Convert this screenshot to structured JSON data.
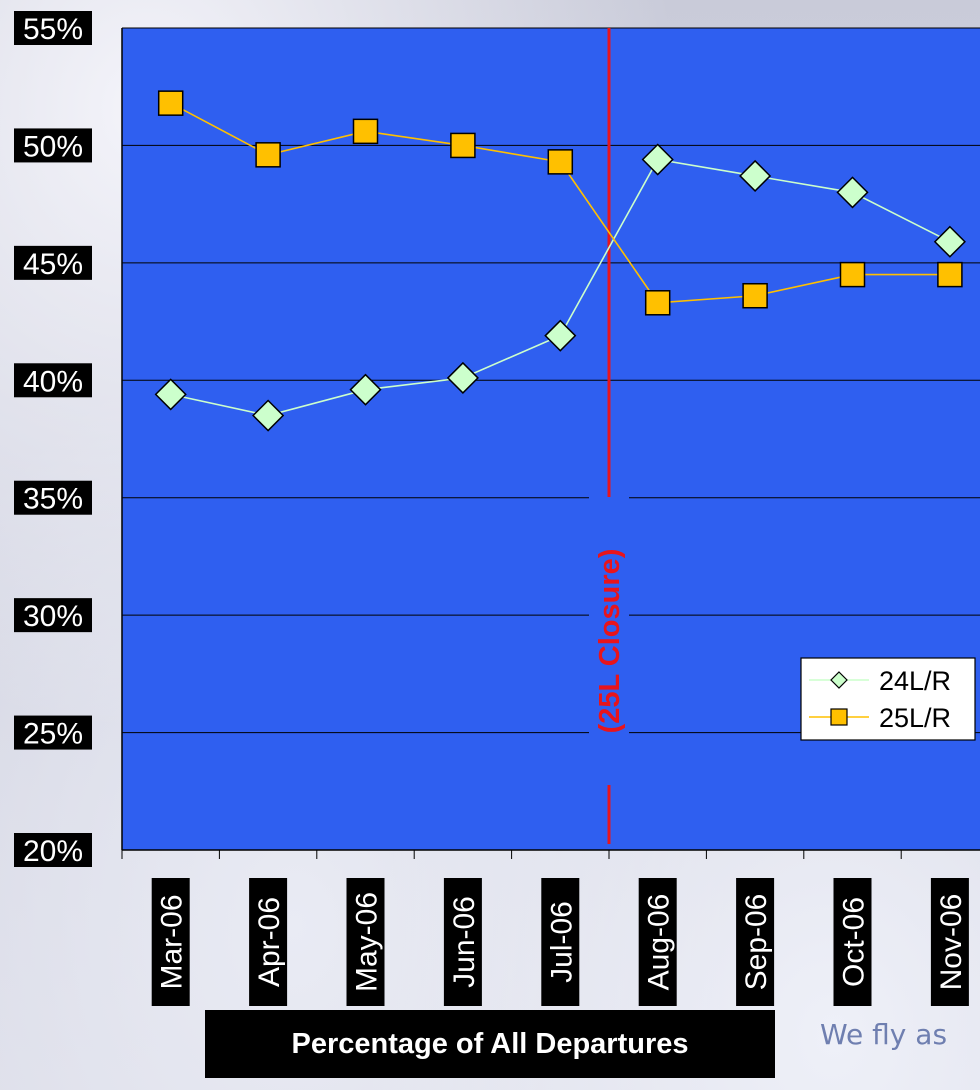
{
  "chart_data": {
    "type": "line",
    "categories": [
      "Mar-06",
      "Apr-06",
      "May-06",
      "Jun-06",
      "Jul-06",
      "Aug-06",
      "Sep-06",
      "Oct-06",
      "Nov-06"
    ],
    "series": [
      {
        "name": "24L/R",
        "values": [
          39.4,
          38.5,
          39.6,
          40.1,
          41.9,
          49.4,
          48.7,
          48.0,
          45.9
        ],
        "color": "#ccffcc",
        "marker": "diamond"
      },
      {
        "name": "25L/R",
        "values": [
          51.8,
          49.6,
          50.6,
          50.0,
          49.3,
          43.3,
          43.6,
          44.5,
          44.5
        ],
        "color": "#ffc000",
        "marker": "square"
      }
    ],
    "ylim": [
      20,
      55
    ],
    "yticks": [
      "20%",
      "25%",
      "30%",
      "35%",
      "40%",
      "45%",
      "50%",
      "55%"
    ],
    "xlabel": "Percentage of All Departures",
    "ylabel": "",
    "grid": true,
    "legend": "bottom-right",
    "annotation": {
      "text": "(25L Closure)",
      "color": "#e8141c",
      "between": [
        "Jul-06",
        "Aug-06"
      ]
    },
    "plot_background": "#2f5ff0"
  },
  "footer": {
    "tagline": "We fly as"
  }
}
